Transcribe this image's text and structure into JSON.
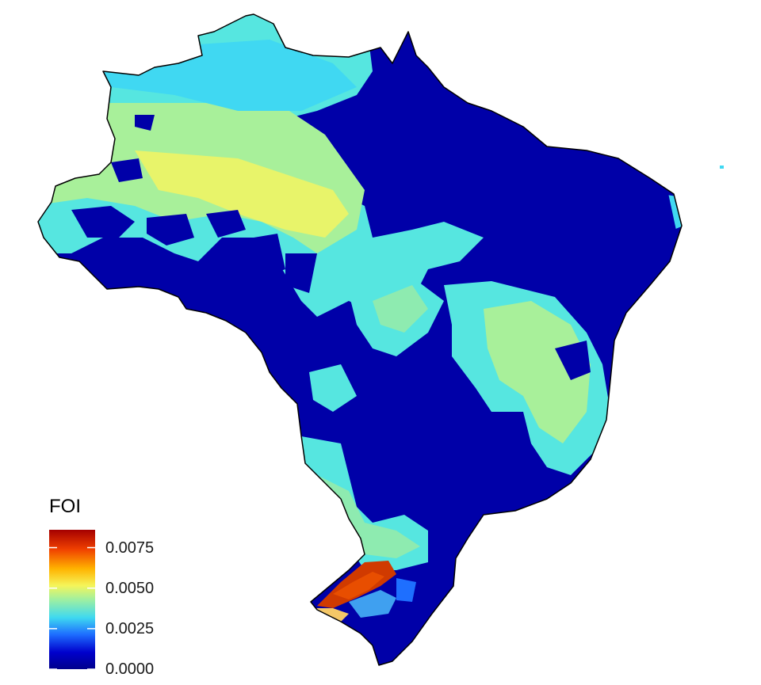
{
  "legend": {
    "title": "FOI",
    "ticks": [
      {
        "value": 0.0075,
        "label": "0.0075"
      },
      {
        "value": 0.005,
        "label": "0.0050"
      },
      {
        "value": 0.0025,
        "label": "0.0025"
      },
      {
        "value": 0.0,
        "label": "0.0000"
      }
    ],
    "range": [
      0.0,
      0.0086
    ],
    "colors": [
      "#00008B",
      "#0000CC",
      "#1E6FFF",
      "#3FD9F0",
      "#A0F0A0",
      "#F5F55A",
      "#FFB300",
      "#F04000",
      "#A50000"
    ]
  },
  "map": {
    "region": "Brazil",
    "background": "#FFFFFF",
    "outline_color": "#000000"
  }
}
